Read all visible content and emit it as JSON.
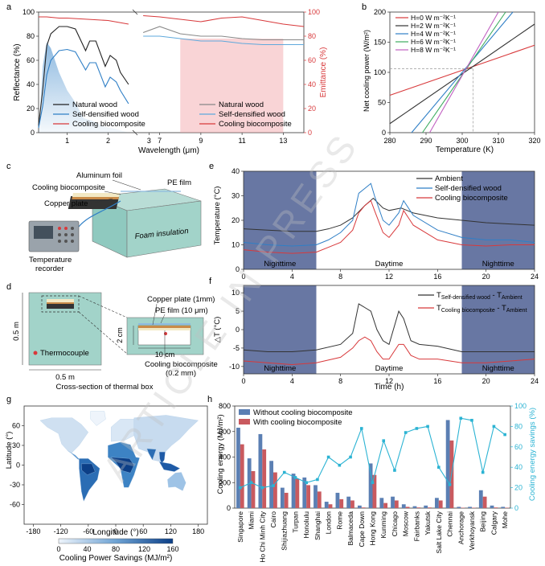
{
  "colors": {
    "natural": "#222222",
    "densified": "#2f7fc6",
    "cooling": "#d8393b",
    "band": "#4d5f93",
    "map_low": "#eef4fb",
    "map_high": "#0c3f87",
    "bar_without": "#5b7fb3",
    "bar_with": "#c95a5f",
    "savings": "#2bb3d3",
    "watermark": "#cfcfcf"
  },
  "watermark": "ARTICLE IN PRESS",
  "chart_data": [
    {
      "id": "a",
      "panel_label": "a",
      "type": "line",
      "xlabel": "Wavelength (μm)",
      "ylabel": "Reflectance (%)",
      "y2label": "Emittance (%)",
      "xticks_left": [
        "1",
        "2",
        "3"
      ],
      "xticks_right": [
        "7",
        "9",
        "11",
        "13"
      ],
      "yticks": [
        "0",
        "20",
        "40",
        "60",
        "80",
        "100"
      ],
      "y2ticks": [
        "0",
        "20",
        "40",
        "60",
        "80",
        "100"
      ],
      "ylim": [
        0,
        100
      ],
      "legend_left": [
        "Natural wood",
        "Self-densified wood",
        "Cooling biocomposite"
      ],
      "legend_right": [
        "Natural wood",
        "Self-densified wood",
        "Cooling biocomposite"
      ],
      "reflectance_natural": {
        "x": [
          0.3,
          0.4,
          0.5,
          0.6,
          0.8,
          1.0,
          1.2,
          1.45,
          1.55,
          1.7,
          1.93,
          2.05,
          2.2,
          2.3,
          2.5
        ],
        "y": [
          6,
          35,
          72,
          82,
          88,
          88,
          86,
          68,
          76,
          76,
          55,
          64,
          60,
          50,
          40
        ]
      },
      "reflectance_densified": {
        "x": [
          0.3,
          0.4,
          0.5,
          0.6,
          0.8,
          1.0,
          1.2,
          1.45,
          1.55,
          1.7,
          1.93,
          2.05,
          2.2,
          2.3,
          2.5
        ],
        "y": [
          4,
          22,
          48,
          60,
          68,
          69,
          67,
          52,
          58,
          58,
          38,
          46,
          42,
          35,
          24
        ]
      },
      "reflectance_cooling_left": {
        "x": [
          0.3,
          0.5,
          0.8,
          1.0,
          1.5,
          2.0,
          2.5
        ],
        "y": [
          96,
          96,
          95,
          95,
          94,
          93,
          90
        ]
      },
      "emittance_natural": {
        "x": [
          6.2,
          7,
          8,
          9,
          10,
          11,
          12,
          13,
          14
        ],
        "y": [
          83,
          88,
          82,
          80,
          80,
          78,
          77,
          77,
          77
        ]
      },
      "emittance_densified": {
        "x": [
          6.2,
          7,
          8,
          9,
          10,
          11,
          12,
          13,
          14
        ],
        "y": [
          80,
          80,
          78,
          76,
          76,
          74,
          73,
          73,
          73
        ]
      },
      "emittance_cooling": {
        "x": [
          6.2,
          7,
          8,
          9,
          10,
          11,
          12,
          13,
          14
        ],
        "y": [
          97,
          96,
          94,
          92,
          95,
          96,
          93,
          90,
          88
        ]
      }
    },
    {
      "id": "b",
      "panel_label": "b",
      "type": "line",
      "xlabel": "Temperature (K)",
      "ylabel": "Net cooling power (W/m²)",
      "xlim": [
        280,
        320
      ],
      "ylim": [
        0,
        200
      ],
      "xticks": [
        "280",
        "290",
        "300",
        "310",
        "320"
      ],
      "yticks": [
        "0",
        "50",
        "100",
        "150",
        "200"
      ],
      "series": [
        {
          "name": "H=0 W m⁻²K⁻¹",
          "x": [
            280,
            320
          ],
          "y": [
            62,
            145
          ],
          "color": "#d8393b"
        },
        {
          "name": "H=2 W m⁻²K⁻¹",
          "x": [
            280,
            320
          ],
          "y": [
            15,
            180
          ],
          "color": "#333333"
        },
        {
          "name": "H=4 W m⁻²K⁻¹",
          "x": [
            286,
            314
          ],
          "y": [
            0,
            200
          ],
          "color": "#2f7fc6"
        },
        {
          "name": "H=6 W m⁻²K⁻¹",
          "x": [
            289,
            312
          ],
          "y": [
            0,
            200
          ],
          "color": "#3cab5f"
        },
        {
          "name": "H=8 W m⁻²K⁻¹",
          "x": [
            291,
            310
          ],
          "y": [
            0,
            200
          ],
          "color": "#c160c2"
        }
      ],
      "reference_point": {
        "x": 303,
        "y": 106
      }
    },
    {
      "id": "e",
      "panel_label": "e",
      "type": "line",
      "xlabel": "",
      "ylabel": "Temperature (°C)",
      "xlim": [
        0,
        24
      ],
      "ylim": [
        0,
        40
      ],
      "xticks": [
        "0",
        "4",
        "8",
        "12",
        "16",
        "20",
        "24"
      ],
      "yticks": [
        "0",
        "10",
        "20",
        "30",
        "40"
      ],
      "shade": [
        [
          0,
          6
        ],
        [
          18,
          24
        ]
      ],
      "labels": [
        "Nighttime",
        "Daytime",
        "Nighttime"
      ],
      "series": [
        {
          "name": "Ambient",
          "x": [
            0,
            2,
            4,
            6,
            7,
            8,
            9,
            10,
            10.7,
            11.5,
            12,
            13,
            14,
            16,
            18,
            20,
            22,
            24
          ],
          "y": [
            16.5,
            16,
            15.5,
            15.5,
            16.5,
            18,
            21,
            26,
            29,
            25,
            24,
            25,
            23,
            21,
            20,
            19,
            18.5,
            18
          ],
          "color": "#333333"
        },
        {
          "name": "Self-densified wood",
          "x": [
            0,
            2,
            4,
            6,
            7,
            8,
            9,
            9.5,
            10,
            10.5,
            10.8,
            11.5,
            12,
            12.8,
            13.2,
            14,
            16,
            18,
            20,
            22,
            24
          ],
          "y": [
            11,
            10,
            9.5,
            10,
            12,
            15,
            20,
            31,
            33,
            35,
            30,
            20,
            18,
            23,
            28,
            22,
            16,
            13,
            12,
            12,
            11
          ],
          "color": "#2f7fc6"
        },
        {
          "name": "Cooling biocomposite",
          "x": [
            0,
            2,
            4,
            6,
            7,
            8,
            9,
            9.5,
            10,
            10.5,
            10.8,
            11.5,
            12,
            12.8,
            13.2,
            14,
            16,
            18,
            20,
            22,
            24
          ],
          "y": [
            8,
            7,
            6.5,
            7,
            9,
            11,
            16,
            23,
            26,
            28,
            24,
            15,
            13,
            18,
            24,
            18,
            12,
            10,
            9.5,
            10,
            10
          ],
          "color": "#d8393b"
        }
      ]
    },
    {
      "id": "f",
      "panel_label": "f",
      "type": "line",
      "xlabel": "Time (h)",
      "ylabel": "△T (°C)",
      "xlim": [
        0,
        24
      ],
      "ylim": [
        -12,
        12
      ],
      "xticks": [
        "0",
        "4",
        "8",
        "12",
        "16",
        "20",
        "24"
      ],
      "yticks": [
        "-10",
        "-5",
        "0",
        "5",
        "10"
      ],
      "shade": [
        [
          0,
          6
        ],
        [
          18,
          24
        ]
      ],
      "labels": [
        "Nighttime",
        "Daytime",
        "Nighttime"
      ],
      "legend": [
        {
          "main": "T",
          "sub": "Self-densified wood",
          "mid": " - T",
          "sub2": "Ambient"
        },
        {
          "main": "T",
          "sub": "Cooling biocomposite",
          "mid": " - T",
          "sub2": "Ambient"
        }
      ],
      "series": [
        {
          "name": "self_densified_minus_ambient",
          "x": [
            0,
            2,
            4,
            6,
            8,
            9,
            9.5,
            10,
            10.5,
            11,
            11.5,
            12,
            12.8,
            13.2,
            13.8,
            14.5,
            16,
            18,
            20,
            22,
            24
          ],
          "y": [
            -5.5,
            -6,
            -6,
            -5.5,
            -4,
            -1,
            7,
            6,
            5,
            0,
            -3,
            -4,
            5,
            3,
            -3,
            -4,
            -4.5,
            -6,
            -6,
            -6,
            -6
          ],
          "color": "#333333"
        },
        {
          "name": "cooling_minus_ambient",
          "x": [
            0,
            2,
            4,
            6,
            8,
            9,
            9.5,
            10,
            10.5,
            11,
            11.5,
            12,
            12.8,
            13.2,
            13.8,
            14.5,
            16,
            18,
            20,
            22,
            24
          ],
          "y": [
            -8.5,
            -9,
            -9.5,
            -9,
            -7.5,
            -5,
            -3,
            -2,
            -3,
            -6,
            -8,
            -8,
            -4,
            -4,
            -7,
            -8,
            -8,
            -9,
            -9,
            -8.5,
            -8
          ],
          "color": "#d8393b"
        }
      ]
    },
    {
      "id": "h",
      "panel_label": "h",
      "type": "bar",
      "ylabel": "Cooling  energy (MJ/m²)",
      "y2label": "Cooling energy savings (%)",
      "ylim": [
        0,
        800
      ],
      "y2lim": [
        0,
        100
      ],
      "yticks": [
        "0",
        "200",
        "400",
        "600",
        "800"
      ],
      "y2ticks": [
        "0",
        "20",
        "40",
        "60",
        "80",
        "100"
      ],
      "categories": [
        "Singapore",
        "Miami",
        "Ho Chi Minh City",
        "Cairo",
        "Shijiazhuang",
        "Turpan",
        "Honolulu",
        "Shanghai",
        "London",
        "Rome",
        "Balmaceda",
        "Cape Down",
        "Hong Kong",
        "Kunming",
        "Chicago",
        "Moscow",
        "Fairbanks",
        "Yakutsk",
        "Salt Lake City",
        "Chennai",
        "Anchorage",
        "Verkhoyansk",
        "Beijing",
        "Calgary",
        "Mohe"
      ],
      "legend": [
        "Without cooling biocomposite",
        "With cooling biocomposite"
      ],
      "series": [
        {
          "name": "Without cooling biocomposite",
          "values": [
            630,
            390,
            580,
            370,
            160,
            270,
            240,
            180,
            50,
            120,
            90,
            20,
            350,
            80,
            90,
            30,
            15,
            20,
            80,
            690,
            10,
            10,
            140,
            20,
            10
          ]
        },
        {
          "name": "With cooling biocomposite",
          "values": [
            500,
            290,
            460,
            280,
            120,
            230,
            180,
            130,
            30,
            70,
            60,
            5,
            260,
            40,
            60,
            10,
            5,
            5,
            60,
            530,
            3,
            3,
            90,
            5,
            3
          ]
        },
        {
          "name": "savings",
          "values": [
            20,
            25,
            20,
            22,
            35,
            30,
            25,
            28,
            50,
            42,
            50,
            78,
            25,
            66,
            37,
            74,
            78,
            80,
            40,
            23,
            88,
            86,
            35,
            80,
            72
          ]
        }
      ]
    },
    {
      "id": "g",
      "panel_label": "g",
      "type": "heatmap",
      "xlabel": "Longitude (°)",
      "ylabel": "Latitude (°)",
      "xticks": [
        "-180",
        "-120",
        "-60",
        "0",
        "60",
        "120",
        "180"
      ],
      "yticks": [
        "60",
        "30",
        "0",
        "-30",
        "-60"
      ],
      "colorbar_ticks": [
        "0",
        "40",
        "80",
        "120",
        "160"
      ],
      "colorbar_label": "Cooling Power Savings (MJ/m²)"
    }
  ],
  "panel_c": {
    "label": "c",
    "aluminum": "Aluminum foil",
    "pe_film": "PE film",
    "cooling": "Cooling biocomposite",
    "copper": "Copper plate",
    "foam": "Foam insulation",
    "recorder_l1": "Temperature",
    "recorder_l2": "recorder"
  },
  "panel_d": {
    "label": "d",
    "height": "0.5 m",
    "width": "0.5 m",
    "thermocouple": "Thermocouple",
    "caption": "Cross-section of thermal box",
    "copper": "Copper plate (1mm)",
    "pe": "PE film (10 μm)",
    "h2": "2 cm",
    "w10": "10 cm",
    "cool_l1": "Cooling biocomposite",
    "cool_l2": "(0.2 mm)"
  }
}
